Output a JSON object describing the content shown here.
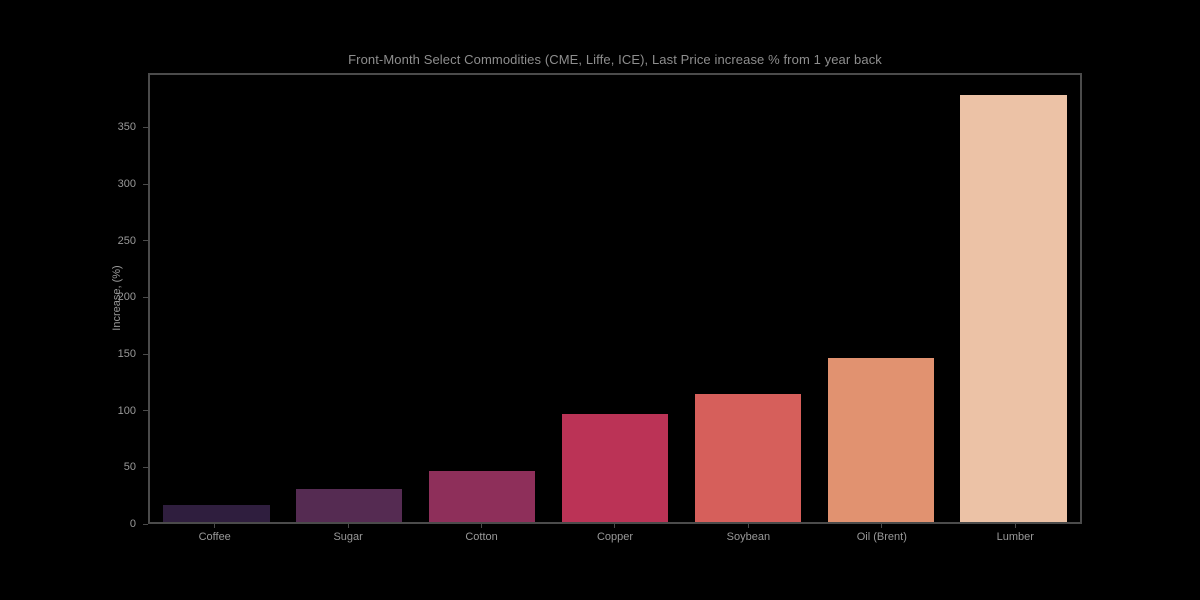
{
  "chart_data": {
    "type": "bar",
    "title": "Front-Month Select Commodities (CME, Liffe, ICE), Last Price increase % from 1 year back",
    "xlabel": "",
    "ylabel": "Increase, (%)",
    "categories": [
      "Coffee",
      "Sugar",
      "Cotton",
      "Copper",
      "Soybean",
      "Oil (Brent)",
      "Lumber"
    ],
    "values": [
      15,
      29,
      45,
      96,
      114,
      146,
      380
    ],
    "bar_colors": [
      "#2f1e3e",
      "#552b52",
      "#8e2f5a",
      "#bb3356",
      "#d65f5b",
      "#e19270",
      "#ecc2a6"
    ],
    "yticks": [
      0,
      50,
      100,
      150,
      200,
      250,
      300,
      350
    ],
    "ylim": [
      0,
      398
    ],
    "grid": false,
    "legend": false,
    "background_color": "#000000",
    "plot_border_color": "#4b4b4b",
    "title_color": "#8e8e8e",
    "tick_label_color": "#999999"
  }
}
